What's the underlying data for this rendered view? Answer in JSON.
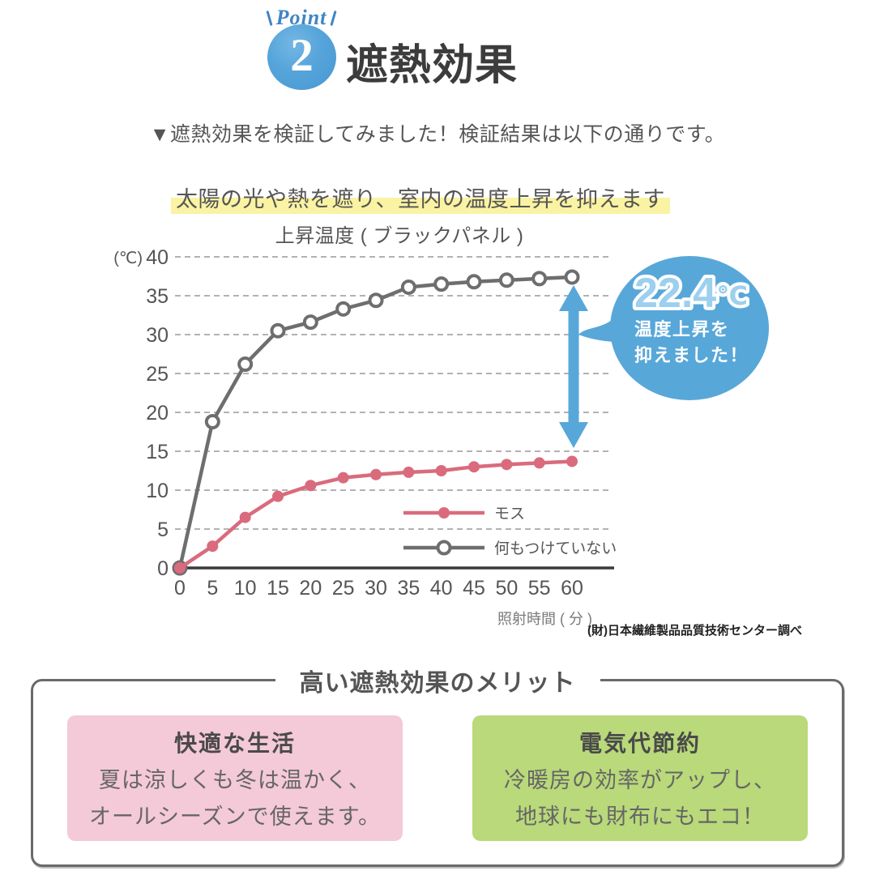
{
  "header": {
    "point_label": "Point",
    "point_number": "2",
    "title": "遮熱効果"
  },
  "intro": {
    "line1": "▼遮熱効果を検証してみました！検証結果は以下の通りです。",
    "highlight": "太陽の光や熱を遮り、室内の温度上昇を抑えます"
  },
  "chart_data": {
    "type": "line",
    "title": "上昇温度 ( ブラックパネル )",
    "y_unit": "(℃)",
    "xlabel": "照射時間 ( 分 )",
    "ylim": [
      0,
      40
    ],
    "yticks": [
      0,
      5,
      10,
      15,
      20,
      25,
      30,
      35,
      40
    ],
    "grid": "dashed-horizontal",
    "legend_position": "inside-lower-right",
    "x": [
      0,
      5,
      10,
      15,
      20,
      25,
      30,
      35,
      40,
      45,
      50,
      55,
      60
    ],
    "series": [
      {
        "name": "モス",
        "color": "#d96b7d",
        "marker": "filled",
        "values": [
          0,
          2.8,
          6.5,
          9.2,
          10.6,
          11.6,
          12.0,
          12.3,
          12.5,
          13.0,
          13.3,
          13.5,
          13.7
        ]
      },
      {
        "name": "何もつけていない",
        "color": "#6e6e6e",
        "marker": "open",
        "values": [
          0,
          18.8,
          26.2,
          30.5,
          31.6,
          33.3,
          34.4,
          36.1,
          36.5,
          36.8,
          37.0,
          37.2,
          37.4
        ]
      }
    ],
    "annotation": {
      "value": "22.4",
      "unit": "℃",
      "line1": "温度上昇を",
      "line2": "抑えました！"
    },
    "source": "(財)日本繊維製品品質技術センター調べ"
  },
  "merits": {
    "heading": "高い遮熱効果のメリット",
    "cards": [
      {
        "title": "快適な生活",
        "line1": "夏は涼しくも冬は温かく、",
        "line2": "オールシーズンで使えます。"
      },
      {
        "title": "電気代節約",
        "line1": "冷暖房の効率がアップし、",
        "line2": "地球にも財布にもエコ！"
      }
    ]
  },
  "colors": {
    "accent_blue": "#58a7d9",
    "point_blue": "#3f86c5",
    "badge_blue": "#55a4da",
    "title_dark": "#3c3c3c",
    "text_gray": "#555555",
    "highlight_yellow": "#faf3a3",
    "moss_pink": "#d96b7d",
    "line_gray": "#6e6e6e",
    "grid_gray": "#999999",
    "card_pink": "#f4c9d8",
    "card_green": "#b9d97a",
    "bubble_value_fill": "#9cd0ee"
  }
}
